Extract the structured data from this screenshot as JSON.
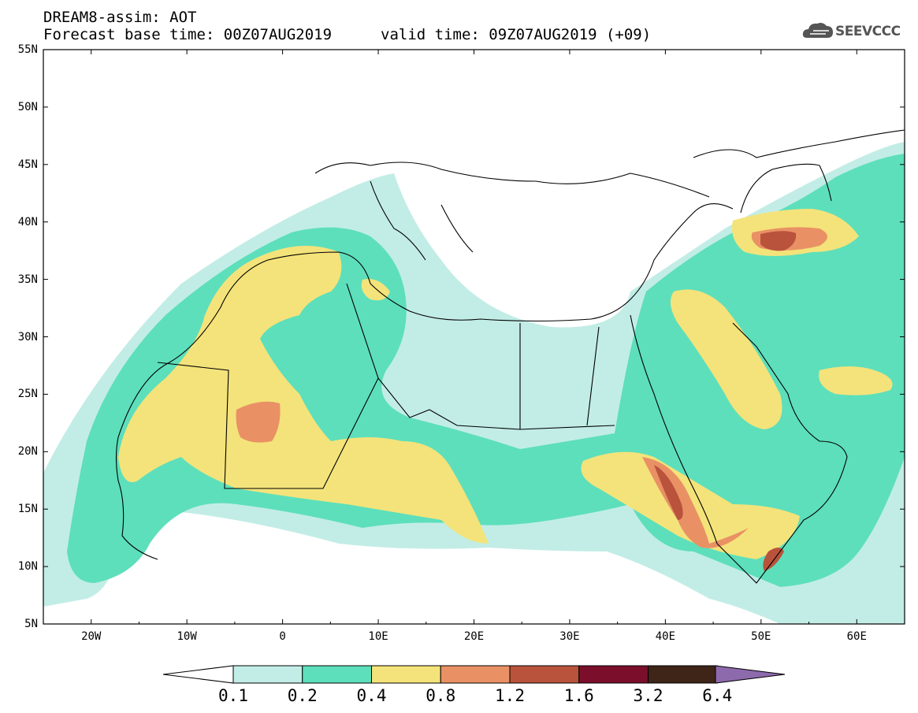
{
  "header": {
    "title_line1": "DREAM8-assim: AOT",
    "title_line2": "Forecast base time: 00Z07AUG2019",
    "valid_time": "valid time: 09Z07AUG2019 (+09)",
    "logo_text": "SEEVCCC"
  },
  "map": {
    "extent": {
      "lon": [
        -25,
        65
      ],
      "lat": [
        5,
        55
      ]
    },
    "lat_ticks": [
      "55N",
      "50N",
      "45N",
      "40N",
      "35N",
      "30N",
      "25N",
      "20N",
      "15N",
      "10N",
      "5N"
    ],
    "lon_ticks": [
      "20W",
      "10W",
      "0",
      "10E",
      "20E",
      "30E",
      "40E",
      "50E",
      "60E"
    ],
    "variable": "AOT"
  },
  "colorbar": {
    "labels": [
      "0.1",
      "0.2",
      "0.4",
      "0.8",
      "1.2",
      "1.6",
      "3.2",
      "6.4"
    ],
    "colors": [
      "#ffffff",
      "#c2ede6",
      "#5ddfbb",
      "#f4e37a",
      "#e99165",
      "#b9533c",
      "#7b0f2b",
      "#3e2518",
      "#8d6aac"
    ]
  }
}
